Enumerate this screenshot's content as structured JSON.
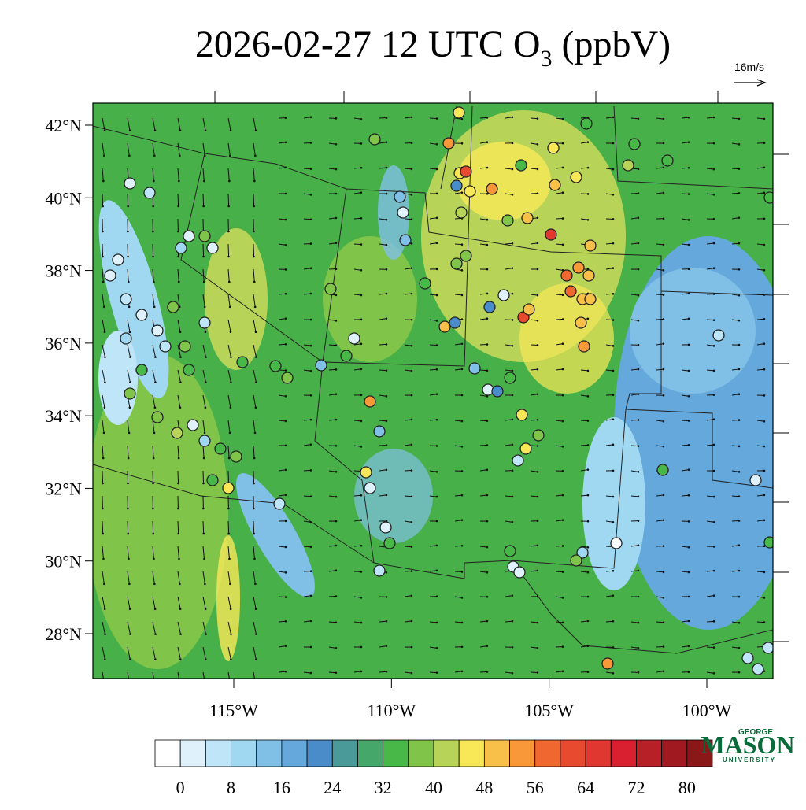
{
  "title": {
    "main": "2026-02-27 12 UTC O",
    "subscript": "3",
    "unit": "(ppbV)"
  },
  "vector_reference": "16m/s",
  "lat_ticks": [
    {
      "value": 42,
      "label": "42°N"
    },
    {
      "value": 40,
      "label": "40°N"
    },
    {
      "value": 38,
      "label": "38°N"
    },
    {
      "value": 36,
      "label": "36°N"
    },
    {
      "value": 34,
      "label": "34°N"
    },
    {
      "value": 32,
      "label": "32°N"
    },
    {
      "value": 30,
      "label": "30°N"
    },
    {
      "value": 28,
      "label": "28°N"
    }
  ],
  "lon_ticks": [
    {
      "value": -115,
      "label": "115°W"
    },
    {
      "value": -110,
      "label": "110°W"
    },
    {
      "value": -105,
      "label": "105°W"
    },
    {
      "value": -100,
      "label": "100°W"
    }
  ],
  "colorbar": {
    "ticks": [
      0,
      8,
      16,
      24,
      32,
      40,
      48,
      56,
      64,
      72,
      80
    ],
    "colors": [
      "#ffffff",
      "#dff2fb",
      "#bfe6f8",
      "#a0d8f2",
      "#80c0e6",
      "#64a8dc",
      "#4a8cca",
      "#4a9a9a",
      "#45a86a",
      "#48b848",
      "#80c44a",
      "#b8d458",
      "#f8e858",
      "#f8c048",
      "#f89838",
      "#f06830",
      "#e84a30",
      "#e03830",
      "#d82030",
      "#b82028",
      "#a01820",
      "#8a1818"
    ]
  },
  "logo": {
    "top": "GEORGE",
    "main": "MASON",
    "bottom": "UNIVERSITY"
  }
}
